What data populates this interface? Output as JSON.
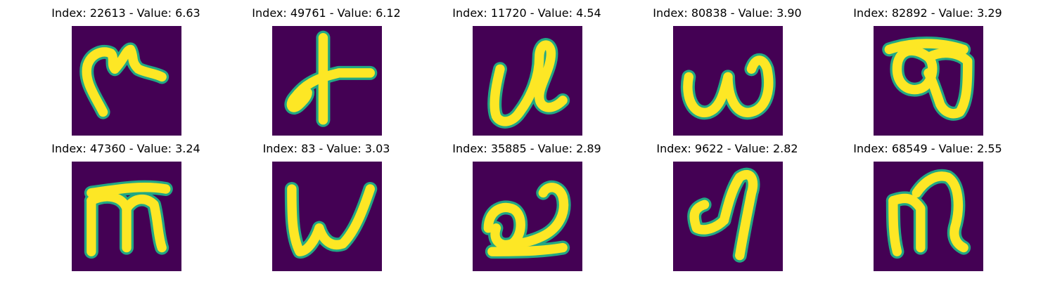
{
  "figure": {
    "background_color": "#440154",
    "stroke_color": "#fde725",
    "edge_color": "#22a884",
    "panels": [
      {
        "index": 22613,
        "value": "6.63",
        "title": "Index: 22613 - Value: 6.63",
        "glyph": "hook-r"
      },
      {
        "index": 49761,
        "value": "6.12",
        "title": "Index: 49761 - Value: 6.12",
        "glyph": "plus-loop"
      },
      {
        "index": 11720,
        "value": "4.54",
        "title": "Index: 11720 - Value: 4.54",
        "glyph": "cl"
      },
      {
        "index": 80838,
        "value": "3.90",
        "title": "Index: 80838 - Value: 3.90",
        "glyph": "w-round"
      },
      {
        "index": 82892,
        "value": "3.29",
        "title": "Index: 82892 - Value: 3.29",
        "glyph": "loops"
      },
      {
        "index": 47360,
        "value": "3.24",
        "title": "Index: 47360 - Value: 3.24",
        "glyph": "m"
      },
      {
        "index": 83,
        "value": "3.03",
        "title": "Index: 83 - Value: 3.03",
        "glyph": "w"
      },
      {
        "index": 35885,
        "value": "2.89",
        "title": "Index: 35885 - Value: 2.89",
        "glyph": "a-loop"
      },
      {
        "index": 9622,
        "value": "2.82",
        "title": "Index: 9622 - Value: 2.82",
        "glyph": "d"
      },
      {
        "index": 68549,
        "value": "2.55",
        "title": "Index: 68549 - Value: 2.55",
        "glyph": "m-arch"
      }
    ]
  }
}
